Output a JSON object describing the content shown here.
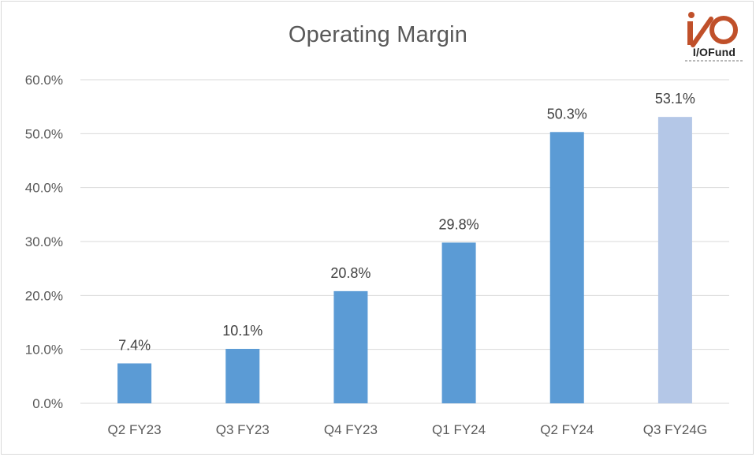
{
  "chart_data": {
    "type": "bar",
    "title": "Operating Margin",
    "categories": [
      "Q2 FY23",
      "Q3 FY23",
      "Q4 FY23",
      "Q1 FY24",
      "Q2 FY24",
      "Q3 FY24G"
    ],
    "values": [
      7.4,
      10.1,
      20.8,
      29.8,
      50.3,
      53.1
    ],
    "data_labels": [
      "7.4%",
      "10.1%",
      "20.8%",
      "29.8%",
      "50.3%",
      "53.1%"
    ],
    "yticks": [
      "0.0%",
      "10.0%",
      "20.0%",
      "30.0%",
      "40.0%",
      "50.0%",
      "60.0%"
    ],
    "ylim": [
      0,
      60
    ],
    "xlabel": "",
    "ylabel": "",
    "grid": true,
    "colors": {
      "bar": "#5b9bd5",
      "bar_guidance": "#b4c7e7",
      "grid": "#d9d9d9",
      "text": "#595959",
      "logo": "#c0502a"
    }
  },
  "logo": {
    "text": "I/OFund",
    "icon": "io-fund-logo-icon"
  }
}
